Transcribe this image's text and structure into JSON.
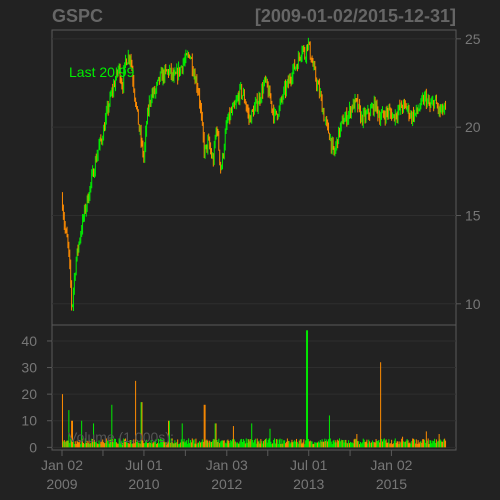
{
  "chart_data": {
    "type": "candlestick",
    "title": "GSPC",
    "date_range_label": "[2009-01-02/2015-12-31]",
    "last_label": "Last 20.99",
    "volume_label": "Volume (1,000s):",
    "x_range": [
      "2009-01-02",
      "2015-12-31"
    ],
    "x_ticks": [
      {
        "date": "2009-01-02",
        "line1": "Jan 02",
        "line2": "2009"
      },
      {
        "date": "2010-07-01",
        "line1": "Jul 01",
        "line2": "2010"
      },
      {
        "date": "2012-01-03",
        "line1": "Jan 03",
        "line2": "2012"
      },
      {
        "date": "2013-07-01",
        "line1": "Jul 01",
        "line2": "2013"
      },
      {
        "date": "2015-01-02",
        "line1": "Jan 02",
        "line2": "2015"
      }
    ],
    "price": {
      "ylim": [
        8.8,
        25.5
      ],
      "ticks": [
        10,
        15,
        20,
        25
      ],
      "series": [
        [
          "2009-01-02",
          16.0
        ],
        [
          "2009-01-20",
          14.3
        ],
        [
          "2009-02-10",
          13.4
        ],
        [
          "2009-03-03",
          10.9
        ],
        [
          "2009-03-09",
          9.5
        ],
        [
          "2009-03-20",
          11.0
        ],
        [
          "2009-04-06",
          12.5
        ],
        [
          "2009-05-01",
          13.8
        ],
        [
          "2009-06-01",
          15.2
        ],
        [
          "2009-07-01",
          16.3
        ],
        [
          "2009-08-01",
          17.6
        ],
        [
          "2009-09-01",
          18.8
        ],
        [
          "2009-10-01",
          19.6
        ],
        [
          "2009-11-01",
          21.0
        ],
        [
          "2009-12-01",
          22.0
        ],
        [
          "2010-01-15",
          23.4
        ],
        [
          "2010-02-08",
          22.3
        ],
        [
          "2010-03-01",
          23.8
        ],
        [
          "2010-04-01",
          24.1
        ],
        [
          "2010-05-06",
          21.5
        ],
        [
          "2010-06-01",
          19.8
        ],
        [
          "2010-07-01",
          18.2
        ],
        [
          "2010-07-20",
          20.4
        ],
        [
          "2010-08-15",
          21.8
        ],
        [
          "2010-09-15",
          22.0
        ],
        [
          "2010-10-15",
          22.8
        ],
        [
          "2010-11-15",
          23.0
        ],
        [
          "2010-12-15",
          23.2
        ],
        [
          "2011-01-15",
          22.7
        ],
        [
          "2011-02-15",
          23.1
        ],
        [
          "2011-03-15",
          23.6
        ],
        [
          "2011-04-15",
          23.9
        ],
        [
          "2011-05-02",
          24.2
        ],
        [
          "2011-06-01",
          23.0
        ],
        [
          "2011-07-01",
          22.0
        ],
        [
          "2011-08-08",
          18.5
        ],
        [
          "2011-09-01",
          19.2
        ],
        [
          "2011-10-04",
          18.0
        ],
        [
          "2011-10-27",
          20.2
        ],
        [
          "2011-11-25",
          17.5
        ],
        [
          "2011-12-15",
          18.9
        ],
        [
          "2012-01-03",
          20.2
        ],
        [
          "2012-02-01",
          20.8
        ],
        [
          "2012-03-01",
          21.2
        ],
        [
          "2012-04-02",
          22.1
        ],
        [
          "2012-05-01",
          21.6
        ],
        [
          "2012-06-01",
          20.4
        ],
        [
          "2012-07-01",
          21.0
        ],
        [
          "2012-08-01",
          21.5
        ],
        [
          "2012-09-14",
          22.6
        ],
        [
          "2012-10-15",
          21.7
        ],
        [
          "2012-11-15",
          20.6
        ],
        [
          "2012-12-15",
          21.0
        ],
        [
          "2013-01-15",
          21.9
        ],
        [
          "2013-02-15",
          22.5
        ],
        [
          "2013-03-15",
          23.2
        ],
        [
          "2013-04-15",
          23.6
        ],
        [
          "2013-05-21",
          24.6
        ],
        [
          "2013-06-05",
          24.0
        ],
        [
          "2013-06-24",
          24.9
        ],
        [
          "2013-07-10",
          24.2
        ],
        [
          "2013-08-15",
          22.8
        ],
        [
          "2013-09-15",
          21.8
        ],
        [
          "2013-10-15",
          20.4
        ],
        [
          "2013-11-15",
          19.6
        ],
        [
          "2013-12-15",
          18.4
        ],
        [
          "2014-01-15",
          19.6
        ],
        [
          "2014-02-15",
          20.4
        ],
        [
          "2014-03-15",
          20.6
        ],
        [
          "2014-04-15",
          21.2
        ],
        [
          "2014-05-15",
          21.4
        ],
        [
          "2014-06-15",
          20.5
        ],
        [
          "2014-07-15",
          20.6
        ],
        [
          "2014-08-15",
          20.9
        ],
        [
          "2014-09-15",
          21.3
        ],
        [
          "2014-10-15",
          20.6
        ],
        [
          "2014-11-15",
          20.7
        ],
        [
          "2014-12-15",
          20.9
        ],
        [
          "2015-01-15",
          20.6
        ],
        [
          "2015-02-15",
          20.9
        ],
        [
          "2015-03-15",
          21.2
        ],
        [
          "2015-04-15",
          21.1
        ],
        [
          "2015-05-15",
          20.6
        ],
        [
          "2015-06-15",
          20.8
        ],
        [
          "2015-07-15",
          21.2
        ],
        [
          "2015-08-15",
          21.7
        ],
        [
          "2015-09-15",
          21.1
        ],
        [
          "2015-10-15",
          21.5
        ],
        [
          "2015-11-15",
          20.9
        ],
        [
          "2015-12-31",
          20.99
        ]
      ]
    },
    "volume": {
      "ylim": [
        -1,
        46
      ],
      "ticks": [
        0,
        10,
        20,
        30,
        40
      ],
      "spikes": [
        {
          "date": "2009-01-05",
          "value": 20
        },
        {
          "date": "2009-02-15",
          "value": 14
        },
        {
          "date": "2009-03-10",
          "value": 10
        },
        {
          "date": "2009-05-15",
          "value": 10
        },
        {
          "date": "2009-08-01",
          "value": 9
        },
        {
          "date": "2009-12-01",
          "value": 16
        },
        {
          "date": "2010-05-07",
          "value": 25
        },
        {
          "date": "2010-06-15",
          "value": 17
        },
        {
          "date": "2010-12-15",
          "value": 10
        },
        {
          "date": "2011-03-15",
          "value": 9
        },
        {
          "date": "2011-08-09",
          "value": 16
        },
        {
          "date": "2011-10-20",
          "value": 9
        },
        {
          "date": "2012-02-15",
          "value": 8
        },
        {
          "date": "2012-06-15",
          "value": 9
        },
        {
          "date": "2012-10-15",
          "value": 7
        },
        {
          "date": "2013-06-20",
          "value": 44
        },
        {
          "date": "2013-11-15",
          "value": 12
        },
        {
          "date": "2014-05-15",
          "value": 5
        },
        {
          "date": "2014-10-20",
          "value": 32
        },
        {
          "date": "2015-03-15",
          "value": 4
        },
        {
          "date": "2015-08-24",
          "value": 6
        },
        {
          "date": "2015-11-15",
          "value": 5
        }
      ]
    },
    "colors": {
      "background": "#222222",
      "grid": "#2e2e2e",
      "border": "#5a5a5a",
      "axis_text": "#777777",
      "title": "#666666",
      "up": "#00ee00",
      "down": "#ff8c00",
      "last_label": "#00ee00"
    }
  }
}
